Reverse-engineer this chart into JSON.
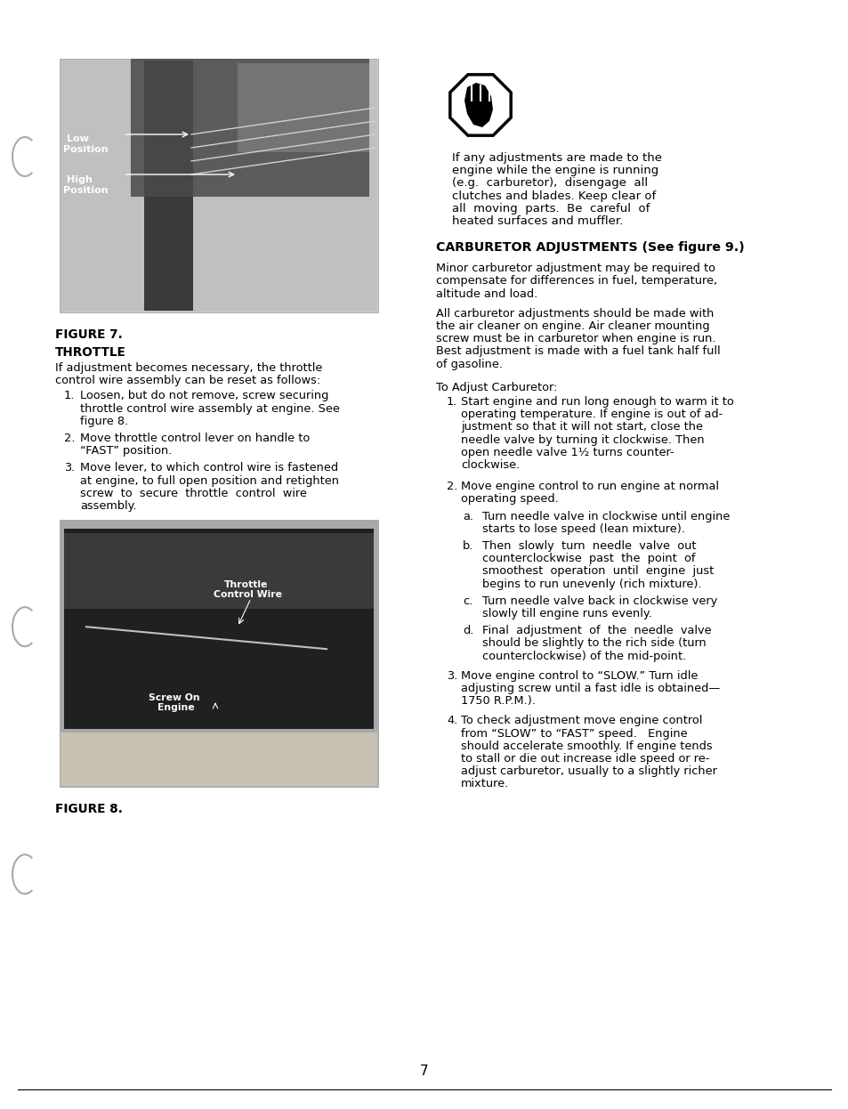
{
  "bg_color": "#ffffff",
  "page_number": "7",
  "left_col": {
    "figure7_label": "FIGURE 7.",
    "throttle_heading": "THROTTLE",
    "throttle_intro": "If adjustment becomes necessary, the throttle control wire assembly can be reset as follows:",
    "throttle_steps": [
      "Loosen, but do not remove, screw securing throttle control wire assembly at engine. See figure 8.",
      "Move throttle control lever on handle to “FAST” position.",
      "Move lever, to which control wire is fastened at engine, to full open position and retighten screw to secure throttle control wire assembly."
    ],
    "figure8_label": "FIGURE 8."
  },
  "right_col": {
    "warning_lines": [
      "If any adjustments are made to the",
      "engine while the engine is running",
      "(e.g.  carburetor),  disengage  all",
      "clutches and blades. Keep clear of",
      "all  moving  parts.  Be  careful  of",
      "heated surfaces and muffler."
    ],
    "carb_heading": "CARBURETOR ADJUSTMENTS (See figure 9.)",
    "carb_intro_lines": [
      "Minor carburetor adjustment may be required to",
      "compensate for differences in fuel, temperature,",
      "altitude and load."
    ],
    "carb_para2_lines": [
      "All carburetor adjustments should be made with",
      "the air cleaner on engine. Air cleaner mounting",
      "screw must be in carburetor when engine is run.",
      "Best adjustment is made with a fuel tank half full",
      "of gasoline."
    ],
    "adjust_intro": "To Adjust Carburetor:",
    "step1_lines": [
      "Start engine and run long enough to warm it to",
      "operating temperature. If engine is out of ad-",
      "justment so that it will not start, close the",
      "needle valve by turning it clockwise. Then",
      "open needle valve 1½ turns counter-",
      "clockwise."
    ],
    "step2_lines": [
      "Move engine control to run engine at normal",
      "operating speed."
    ],
    "step2a_lines": [
      "Turn needle valve in clockwise until engine",
      "starts to lose speed (lean mixture)."
    ],
    "step2b_lines": [
      "Then  slowly  turn  needle  valve  out",
      "counterclockwise  past  the  point  of",
      "smoothest  operation  until  engine  just",
      "begins to run unevenly (rich mixture)."
    ],
    "step2c_lines": [
      "Turn needle valve back in clockwise very",
      "slowly till engine runs evenly."
    ],
    "step2d_lines": [
      "Final  adjustment  of  the  needle  valve",
      "should be slightly to the rich side (turn",
      "counterclockwise) of the mid-point."
    ],
    "step3_lines": [
      "Move engine control to “SLOW.” Turn idle",
      "adjusting screw until a fast idle is obtained—",
      "1750 R.P.M.)."
    ],
    "step4_lines": [
      "To check adjustment move engine control",
      "from “SLOW” to “FAST” speed.   Engine",
      "should accelerate smoothly. If engine tends",
      "to stall or die out increase idle speed or re-",
      "adjust carburetor, usually to a slightly richer",
      "mixture."
    ]
  },
  "font_body": 9.3,
  "font_bold": 9.8,
  "font_heading": 10.2,
  "lh": 14.2,
  "lh_small": 13.5
}
